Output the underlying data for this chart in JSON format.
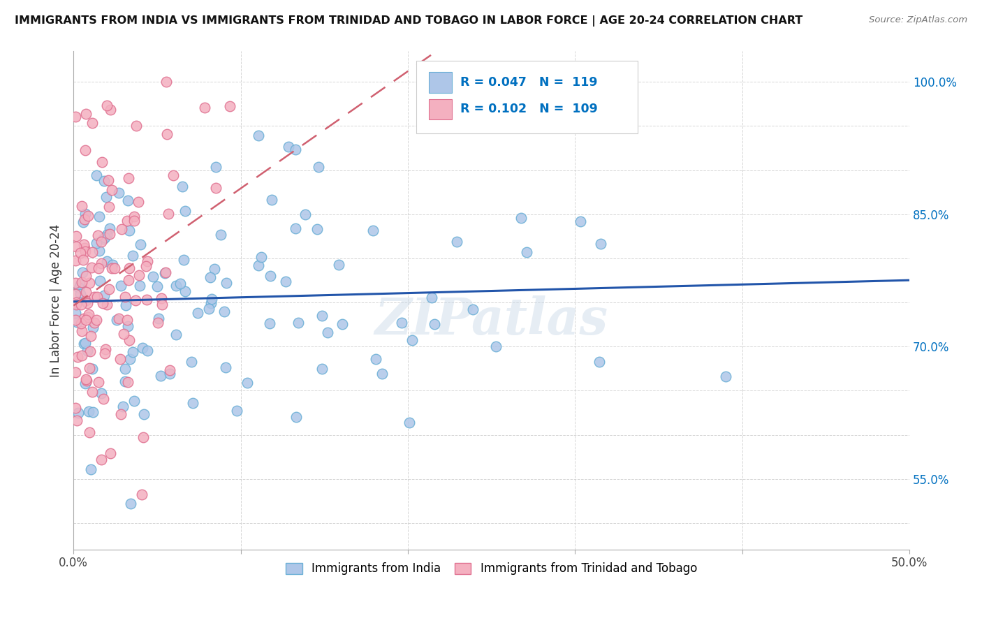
{
  "title": "IMMIGRANTS FROM INDIA VS IMMIGRANTS FROM TRINIDAD AND TOBAGO IN LABOR FORCE | AGE 20-24 CORRELATION CHART",
  "source": "Source: ZipAtlas.com",
  "ylabel": "In Labor Force | Age 20-24",
  "xlim": [
    0.0,
    0.5
  ],
  "ylim": [
    0.47,
    1.035
  ],
  "india_color": "#aec6e8",
  "india_edge": "#6aafd6",
  "tt_color": "#f4b0c0",
  "tt_edge": "#e07090",
  "india_R": 0.047,
  "india_N": 119,
  "tt_R": 0.102,
  "tt_N": 109,
  "legend_color": "#0070c0",
  "india_line_color": "#2255aa",
  "tt_line_color": "#d06070",
  "watermark": "ZIPatlas",
  "ytick_positions": [
    0.5,
    0.55,
    0.6,
    0.65,
    0.7,
    0.75,
    0.8,
    0.85,
    0.9,
    0.95,
    1.0
  ],
  "ytick_labels": [
    "",
    "55.0%",
    "",
    "",
    "70.0%",
    "",
    "",
    "85.0%",
    "",
    "",
    "100.0%"
  ],
  "xtick_positions": [
    0.0,
    0.1,
    0.2,
    0.3,
    0.4,
    0.5
  ],
  "xtick_labels": [
    "0.0%",
    "",
    "",
    "",
    "",
    "50.0%"
  ]
}
